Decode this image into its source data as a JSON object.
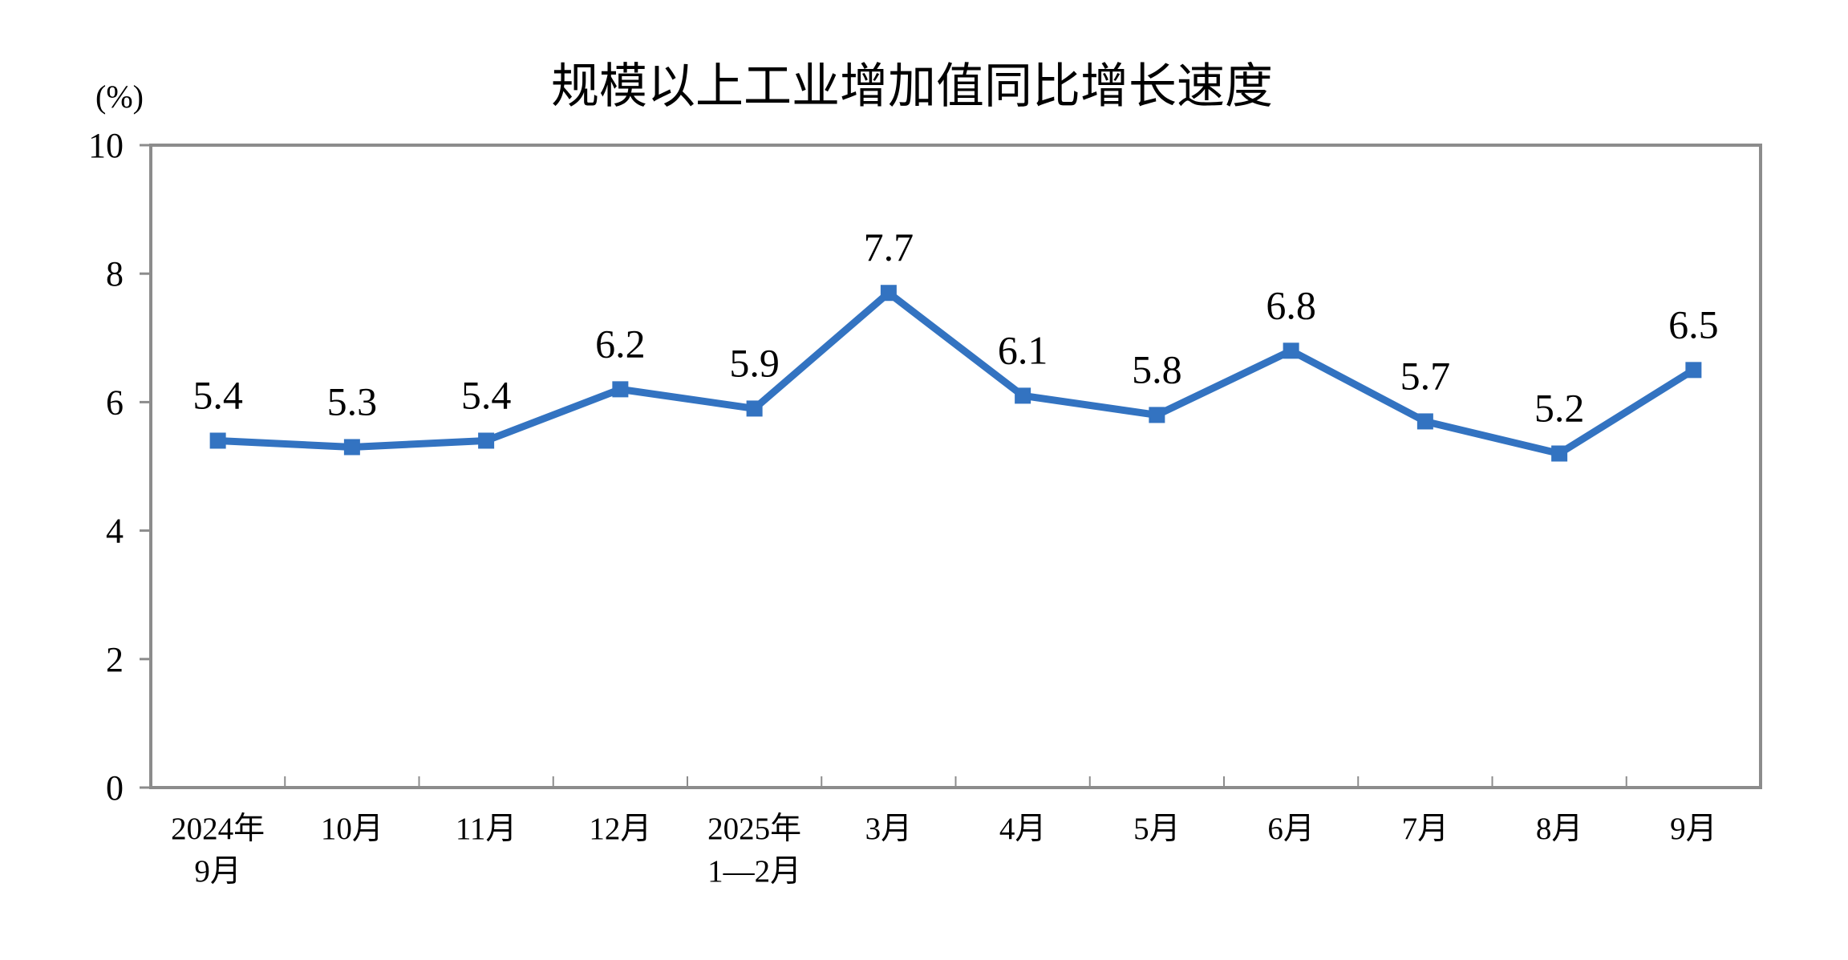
{
  "chart_data": {
    "type": "line",
    "title": "规模以上工业增加值同比增长速度",
    "unit_label": "(%)",
    "ylim": [
      0,
      10
    ],
    "yticks": [
      0,
      2,
      4,
      6,
      8,
      10
    ],
    "grid": false,
    "legend": "none",
    "categories": [
      [
        "2024年",
        "9月"
      ],
      [
        "10月"
      ],
      [
        "11月"
      ],
      [
        "12月"
      ],
      [
        "2025年",
        "1—2月"
      ],
      [
        "3月"
      ],
      [
        "4月"
      ],
      [
        "5月"
      ],
      [
        "6月"
      ],
      [
        "7月"
      ],
      [
        "8月"
      ],
      [
        "9月"
      ]
    ],
    "series": [
      {
        "values": [
          5.4,
          5.3,
          5.4,
          6.2,
          5.9,
          7.7,
          6.1,
          5.8,
          6.8,
          5.7,
          5.2,
          6.5
        ],
        "labels": [
          "5.4",
          "5.3",
          "5.4",
          "6.2",
          "5.9",
          "7.7",
          "6.1",
          "5.8",
          "6.8",
          "5.7",
          "5.2",
          "6.5"
        ]
      }
    ],
    "colors": {
      "line": "#3373c1",
      "axis": "#8c8c8c"
    }
  }
}
